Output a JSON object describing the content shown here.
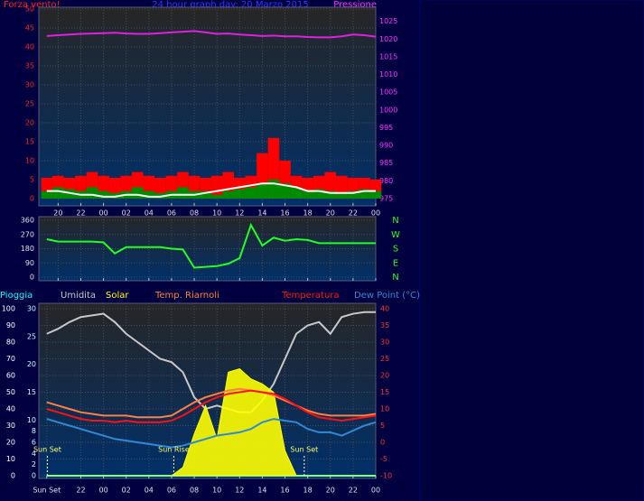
{
  "chart_data": [
    {
      "type": "combo",
      "title": "24 hour graph day: 20 Marzo 2015",
      "y_label": "Forza vento!",
      "y2_label": "Pressione",
      "x": [
        19,
        20,
        21,
        22,
        23,
        24,
        25,
        26,
        27,
        28,
        29,
        30,
        31,
        32,
        33,
        34,
        35,
        36,
        37,
        38,
        39,
        40,
        41,
        42,
        43,
        44,
        45,
        46,
        47,
        48
      ],
      "xlim": [
        18.3,
        48
      ],
      "xticks": [
        20,
        22,
        {
          "value": 24,
          "label": "00"
        },
        {
          "value": 26,
          "label": "02"
        },
        {
          "value": 28,
          "label": "04"
        },
        {
          "value": 30,
          "label": "06"
        },
        {
          "value": 32,
          "label": "08"
        },
        {
          "value": 34,
          "label": "10"
        },
        {
          "value": 36,
          "label": "12"
        },
        {
          "value": 38,
          "label": "14"
        },
        {
          "value": 40,
          "label": "16"
        },
        {
          "value": 42,
          "label": "18"
        },
        {
          "value": 44,
          "label": "20"
        },
        {
          "value": 46,
          "label": "22"
        },
        {
          "value": 48,
          "label": "00"
        }
      ],
      "ylim": [
        0,
        50
      ],
      "yticks": [
        0,
        5,
        10,
        15,
        20,
        25,
        30,
        35,
        40,
        45,
        50
      ],
      "y2lim": [
        975,
        1028.5
      ],
      "y2ticks": [
        975,
        980,
        985,
        990,
        995,
        1000,
        1005,
        1010,
        1015,
        1020,
        1025
      ],
      "grid": true,
      "series": [
        {
          "style": "bar",
          "color": "#ff0000",
          "values": [
            5.5,
            6,
            5.5,
            6,
            7,
            6,
            5.5,
            6,
            7,
            6,
            5.5,
            6,
            7,
            6,
            5.5,
            6,
            7,
            5.5,
            6,
            12,
            16,
            10,
            6,
            5.5,
            6,
            7,
            6,
            5.5,
            5.5,
            5
          ]
        },
        {
          "style": "bar",
          "color": "#008c00",
          "values": [
            2,
            3,
            2.5,
            2,
            3,
            2,
            1.5,
            2,
            3,
            2,
            1.5,
            2,
            3,
            2,
            2,
            1,
            2,
            2.5,
            3,
            4,
            5,
            4,
            3,
            2,
            2.5,
            2,
            1.5,
            2,
            2.5,
            2
          ]
        },
        {
          "style": "line",
          "color": "#ffffff",
          "values": [
            2,
            2,
            1.5,
            1,
            1,
            0.5,
            0.5,
            1,
            1,
            0.5,
            0.5,
            1,
            1,
            1,
            1.5,
            2,
            2.5,
            3,
            3.5,
            4,
            4,
            3.5,
            3,
            2,
            2,
            1.5,
            1.5,
            1.5,
            2,
            2
          ]
        },
        {
          "style": "line",
          "axis": "y2",
          "color": "#e020e0",
          "values": [
            1020.9,
            1021.1,
            1021.3,
            1021.5,
            1021.6,
            1021.7,
            1021.8,
            1021.6,
            1021.5,
            1021.5,
            1021.7,
            1021.9,
            1022.1,
            1022.3,
            1021.9,
            1021.5,
            1021.6,
            1021.3,
            1021.1,
            1020.9,
            1021,
            1020.8,
            1020.8,
            1020.6,
            1020.5,
            1020.5,
            1020.8,
            1021.3,
            1021.1,
            1020.7
          ]
        }
      ]
    },
    {
      "type": "line",
      "x": [
        19,
        20,
        21,
        22,
        23,
        24,
        25,
        26,
        27,
        28,
        29,
        30,
        31,
        32,
        33,
        34,
        35,
        36,
        37,
        38,
        39,
        40,
        41,
        42,
        43,
        44,
        45,
        46,
        47,
        48
      ],
      "xlim": [
        18.3,
        48
      ],
      "xticks": [
        20,
        22,
        24,
        26,
        28,
        30,
        32,
        34,
        36,
        38,
        40,
        42,
        44,
        46,
        48
      ],
      "ylim": [
        0,
        360
      ],
      "yticks": [
        0,
        90,
        180,
        270,
        360
      ],
      "y2ticks": [
        {
          "value": 360,
          "label": "N"
        },
        {
          "value": 270,
          "label": "W"
        },
        {
          "value": 180,
          "label": "S"
        },
        {
          "value": 90,
          "label": "E"
        },
        {
          "value": 0,
          "label": "N"
        }
      ],
      "grid": true,
      "series": [
        {
          "style": "line",
          "color": "#20ff20",
          "values": [
            240,
            225,
            225,
            225,
            225,
            220,
            150,
            190,
            190,
            190,
            190,
            180,
            175,
            60,
            65,
            70,
            85,
            120,
            330,
            200,
            250,
            230,
            240,
            235,
            215,
            215,
            215,
            215,
            215,
            215
          ]
        }
      ]
    },
    {
      "type": "combo",
      "x": [
        19,
        20,
        21,
        22,
        23,
        24,
        25,
        26,
        27,
        28,
        29,
        30,
        31,
        32,
        33,
        34,
        35,
        36,
        37,
        38,
        39,
        40,
        41,
        42,
        43,
        44,
        45,
        46,
        47,
        48
      ],
      "xlim": [
        18.3,
        48
      ],
      "xticks": [
        {
          "value": 19,
          "label": "Sun Set"
        },
        22,
        {
          "value": 24,
          "label": "00"
        },
        {
          "value": 26,
          "label": "02"
        },
        {
          "value": 28,
          "label": "04"
        },
        {
          "value": 30,
          "label": "06"
        },
        {
          "value": 32,
          "label": "08"
        },
        {
          "value": 34,
          "label": "10"
        },
        {
          "value": 36,
          "label": "12"
        },
        {
          "value": 38,
          "label": "14"
        },
        {
          "value": 40,
          "label": "16"
        },
        {
          "value": 42,
          "label": "18"
        },
        {
          "value": 44,
          "label": "20"
        },
        {
          "value": 46,
          "label": "22"
        },
        {
          "value": 48,
          "label": "00"
        }
      ],
      "ylim": [
        0,
        100
      ],
      "yticks": [
        0,
        10,
        20,
        30,
        40,
        50,
        60,
        70,
        80,
        90,
        100
      ],
      "y3lim": [
        0,
        30
      ],
      "y3ticks": [
        0,
        2,
        4,
        6,
        8,
        10,
        15,
        20,
        25,
        30
      ],
      "y2lim": [
        -10,
        40
      ],
      "y2ticks": [
        -10,
        -5,
        0,
        5,
        10,
        15,
        20,
        25,
        30,
        35,
        40
      ],
      "grid": true,
      "annotations": [
        {
          "x": 19.05,
          "label": "Sun Set"
        },
        {
          "x": 30.2,
          "label": "Sun Rise"
        },
        {
          "x": 41.7,
          "label": "Sun Set"
        }
      ],
      "series": [
        {
          "name": "Pioggia",
          "style": "line",
          "axis": "y3",
          "color": "#00ffff",
          "values": [
            0,
            0,
            0,
            0,
            0,
            0,
            0,
            0,
            0,
            0,
            0,
            0,
            0,
            0,
            0,
            0,
            0,
            0,
            0,
            0,
            0,
            0,
            0,
            0,
            0,
            0,
            0,
            0,
            0,
            0
          ]
        },
        {
          "name": "Umidita",
          "style": "line",
          "color": "#c8c8c8",
          "values": [
            85,
            88,
            92,
            95,
            96,
            97,
            92,
            85,
            80,
            75,
            70,
            68,
            62,
            47,
            40,
            42,
            40,
            38,
            38,
            45,
            55,
            70,
            85,
            90,
            92,
            85,
            95,
            97,
            98,
            98
          ]
        },
        {
          "name": "Solar",
          "style": "area",
          "color": "#ffff00",
          "values": [
            0,
            0,
            0,
            0,
            0,
            0,
            0,
            0,
            0,
            0,
            0,
            0,
            5,
            25,
            42,
            22,
            62,
            64,
            58,
            55,
            50,
            15,
            0,
            0,
            0,
            0,
            0,
            0,
            0,
            0
          ]
        },
        {
          "name": "Temp. Riarnoli",
          "style": "line",
          "axis": "y2",
          "color": "#ff8040",
          "values": [
            12,
            11,
            10,
            9,
            8.5,
            8,
            8,
            8,
            7.5,
            7.5,
            7.5,
            8,
            10,
            12,
            13.5,
            14.5,
            15.5,
            16,
            15.5,
            15,
            14,
            12.5,
            11,
            9.5,
            8.5,
            8,
            8,
            8,
            8,
            8.5
          ]
        },
        {
          "name": "Temperatura",
          "style": "line",
          "axis": "y2",
          "color": "#ff1010",
          "values": [
            10,
            9,
            8,
            7,
            6.5,
            6.5,
            6,
            6.5,
            6,
            6,
            6,
            6.5,
            8,
            10,
            12,
            13.5,
            14.5,
            15,
            15.5,
            15,
            14.5,
            13,
            11,
            9,
            7.5,
            7,
            6.5,
            7,
            7.5,
            8
          ]
        },
        {
          "name": "Dew Point (°C)",
          "style": "line",
          "axis": "y2",
          "color": "#2e8ad6",
          "values": [
            7,
            6,
            5,
            4,
            3,
            2,
            1,
            0.5,
            0,
            -0.5,
            -1,
            -1.5,
            -1,
            0,
            1,
            2,
            2.5,
            3,
            4,
            6,
            7,
            6.5,
            6,
            4,
            3,
            3,
            2,
            3.5,
            5,
            6
          ]
        }
      ]
    }
  ]
}
